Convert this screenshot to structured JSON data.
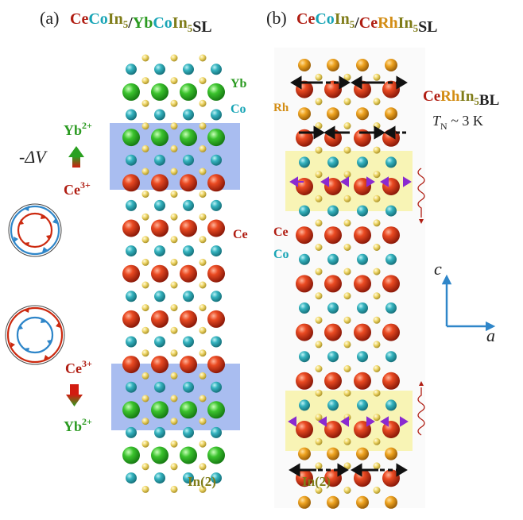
{
  "colors": {
    "ce": "#cc2a10",
    "co": "#2aa9b4",
    "in": "#f2dc68",
    "yb": "#33b82a",
    "rh": "#e8951a",
    "band_blue": "#a9bdf0",
    "band_yellow": "#fbef54",
    "arrow_blue": "#2f86c9",
    "arrow_red": "#cc2a10",
    "label_green": "#2a9a20",
    "label_red": "#b01d12",
    "label_cyan": "#19a5b6",
    "label_orange": "#d38d14",
    "label_olive": "#7f7c18"
  },
  "panel_a": {
    "label": "(a)",
    "title_parts": [
      {
        "text": "Ce",
        "color": "#b01d12"
      },
      {
        "text": "Co",
        "color": "#19a5b6"
      },
      {
        "text": "In",
        "color": "#7f7c18"
      },
      {
        "text": "5",
        "color": "#7f7c18",
        "sub": true
      },
      {
        "text": "/",
        "color": "#222222"
      },
      {
        "text": "Yb",
        "color": "#2a9a20"
      },
      {
        "text": "Co",
        "color": "#19a5b6"
      },
      {
        "text": "In",
        "color": "#7f7c18"
      },
      {
        "text": "5",
        "color": "#7f7c18",
        "sub": true
      },
      {
        "text": "SL",
        "color": "#222222"
      }
    ],
    "yb_label": "Yb",
    "co_label": "Co",
    "ce_label": "Ce",
    "in_label": "In(2)",
    "yb_ion": "Yb",
    "yb_charge": "2+",
    "ce_ion": "Ce",
    "ce_charge": "3+",
    "dv_label": "-ΔV"
  },
  "panel_b": {
    "label": "(b)",
    "title_parts": [
      {
        "text": "Ce",
        "color": "#b01d12"
      },
      {
        "text": "Co",
        "color": "#19a5b6"
      },
      {
        "text": "In",
        "color": "#7f7c18"
      },
      {
        "text": "5",
        "color": "#7f7c18",
        "sub": true
      },
      {
        "text": "/",
        "color": "#222222"
      },
      {
        "text": "Ce",
        "color": "#b01d12"
      },
      {
        "text": "Rh",
        "color": "#d38d14"
      },
      {
        "text": "In",
        "color": "#7f7c18"
      },
      {
        "text": "5",
        "color": "#7f7c18",
        "sub": true
      },
      {
        "text": "SL",
        "color": "#222222"
      }
    ],
    "bl_parts": [
      {
        "text": "Ce",
        "color": "#b01d12"
      },
      {
        "text": "Rh",
        "color": "#d38d14"
      },
      {
        "text": "In",
        "color": "#7f7c18"
      },
      {
        "text": "5",
        "color": "#7f7c18",
        "sub": true
      },
      {
        "text": "BL",
        "color": "#222222"
      }
    ],
    "tn_symbol": "T",
    "tn_subscript": "N",
    "tn_value": " ~ 3 K",
    "rh_label": "Rh",
    "ce_label": "Ce",
    "co_label": "Co",
    "in_label": "In(2)",
    "axis_c": "c",
    "axis_a": "a"
  },
  "column_a": [
    "in",
    "co",
    "in",
    "yb",
    "in",
    "co",
    "in",
    "yb",
    "in",
    "co",
    "in",
    "ce",
    "in",
    "co",
    "in",
    "ce",
    "in",
    "co",
    "in",
    "ce",
    "in",
    "co",
    "in",
    "ce",
    "in",
    "co",
    "in",
    "ce",
    "in",
    "co",
    "in",
    "yb",
    "in",
    "co",
    "in",
    "yb",
    "in",
    "co",
    "in"
  ],
  "column_b": [
    "rh",
    "in",
    "ce",
    "in",
    "rh",
    "in",
    "ce",
    "in",
    "co",
    "in",
    "ce",
    "in",
    "co",
    "in",
    "ce",
    "in",
    "co",
    "in",
    "ce",
    "in",
    "co",
    "in",
    "ce",
    "in",
    "co",
    "in",
    "ce",
    "in",
    "co",
    "in",
    "ce",
    "in",
    "rh",
    "in",
    "ce",
    "in",
    "rh"
  ]
}
